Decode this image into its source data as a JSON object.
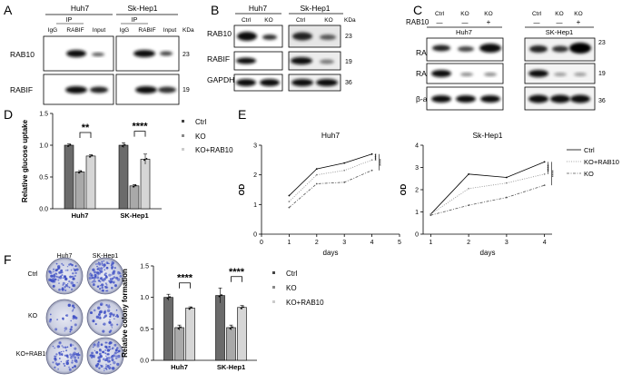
{
  "panel_letters": {
    "a": "A",
    "b": "B",
    "c": "C",
    "d": "D",
    "e": "E",
    "f": "F"
  },
  "colors": {
    "ctrl": "#6b6b6b",
    "ko": "#a9a9a9",
    "rescue": "#d6d6d6",
    "sig": "#000000",
    "colony": "#3e4fc4"
  },
  "panelA": {
    "huh7_title": "Huh7",
    "hep_title": "Sk-Hep1",
    "ip_label": "IP",
    "lanes": [
      "IgG",
      "RABIF",
      "Input"
    ],
    "rows": [
      "RAB10",
      "RABIF"
    ],
    "kda_header": "KDa",
    "kda": [
      "23",
      "19"
    ]
  },
  "panelB": {
    "huh7_title": "Huh7",
    "hep_title": "Sk-Hep1",
    "lanes": [
      "Ctrl",
      "KO"
    ],
    "rows": [
      "RAB10",
      "RABIF",
      "GAPDH"
    ],
    "kda_header": "KDa",
    "kda": [
      "23",
      "19",
      "36"
    ]
  },
  "panelC": {
    "rab10_label": "RAB10",
    "huh7_title": "Huh7",
    "hep_title": "SK-Hep1",
    "lanes": [
      "Ctrl",
      "KO",
      "KO"
    ],
    "signs": [
      "—",
      "—",
      "+"
    ],
    "rows": [
      "RAB10",
      "RABIF",
      "β-actin"
    ],
    "kda": [
      "23",
      "19",
      "36"
    ]
  },
  "legend": {
    "ctrl": "Ctrl",
    "ko": "KO",
    "rescue": "KO+RAB10"
  },
  "panelE_legend": {
    "ctrl": "Ctrl",
    "rescue": "KO+RAB10",
    "ko": "KO"
  },
  "panelF": {
    "col_labels": [
      "Huh7",
      "SK-Hep1"
    ],
    "row_labels": [
      "Ctrl",
      "KO",
      "KO+RAB10"
    ]
  },
  "chart_data": [
    {
      "panel": "D",
      "type": "bar",
      "ylabel": "Relative glucose uptake",
      "categories": [
        "Huh7",
        "SK-Hep1"
      ],
      "ylim": [
        0,
        1.5
      ],
      "yticks": [
        "0.0",
        "0.5",
        "1.0",
        "1.5"
      ],
      "series": [
        {
          "name": "Ctrl",
          "values": [
            1.0,
            1.0
          ],
          "err": [
            0.02,
            0.04
          ]
        },
        {
          "name": "KO",
          "values": [
            0.58,
            0.36
          ],
          "err": [
            0.02,
            0.02
          ]
        },
        {
          "name": "KO+RAB10",
          "values": [
            0.83,
            0.78
          ],
          "err": [
            0.02,
            0.08
          ]
        }
      ],
      "significance": [
        {
          "category": "Huh7",
          "label": "**"
        },
        {
          "category": "SK-Hep1",
          "label": "****"
        }
      ]
    },
    {
      "panel": "E-left",
      "type": "line",
      "title": "Huh7",
      "xlabel": "days",
      "ylabel": "OD",
      "xlim": [
        0,
        5
      ],
      "ylim": [
        0,
        3
      ],
      "xticks": [
        "0",
        "1",
        "2",
        "3",
        "4",
        "5"
      ],
      "yticks": [
        "0",
        "1",
        "2",
        "3"
      ],
      "x": [
        1,
        2,
        3,
        4
      ],
      "series": [
        {
          "name": "Ctrl",
          "values": [
            1.3,
            2.2,
            2.4,
            2.7
          ],
          "style": "solid"
        },
        {
          "name": "KO+RAB10",
          "values": [
            1.1,
            2.0,
            2.15,
            2.5
          ],
          "style": "dotted"
        },
        {
          "name": "KO",
          "values": [
            0.9,
            1.7,
            1.75,
            2.15
          ],
          "style": "dashdot"
        }
      ],
      "significance": [
        "****",
        "****"
      ]
    },
    {
      "panel": "E-right",
      "type": "line",
      "title": "Sk-Hep1",
      "xlabel": "days",
      "ylabel": "OD",
      "xlim": [
        0.8,
        4.2
      ],
      "ylim": [
        0,
        4
      ],
      "xticks": [
        "1",
        "2",
        "3",
        "4"
      ],
      "yticks": [
        "0",
        "1",
        "2",
        "3",
        "4"
      ],
      "x": [
        1,
        2,
        3,
        4
      ],
      "series": [
        {
          "name": "Ctrl",
          "values": [
            0.9,
            2.7,
            2.55,
            3.25
          ],
          "style": "solid"
        },
        {
          "name": "KO+RAB10",
          "values": [
            0.9,
            2.05,
            2.3,
            2.7
          ],
          "style": "dotted"
        },
        {
          "name": "KO",
          "values": [
            0.85,
            1.3,
            1.65,
            2.2
          ],
          "style": "dashdot"
        }
      ],
      "significance": [
        "****",
        "****"
      ]
    },
    {
      "panel": "F",
      "type": "bar",
      "ylabel": "Relative colony formation",
      "categories": [
        "Huh7",
        "SK-Hep1"
      ],
      "ylim": [
        0,
        1.5
      ],
      "yticks": [
        "0.0",
        "0.5",
        "1.0",
        "1.5"
      ],
      "series": [
        {
          "name": "Ctrl",
          "values": [
            1.0,
            1.03
          ],
          "err": [
            0.05,
            0.12
          ]
        },
        {
          "name": "KO",
          "values": [
            0.52,
            0.52
          ],
          "err": [
            0.04,
            0.04
          ]
        },
        {
          "name": "KO+RAB10",
          "values": [
            0.83,
            0.84
          ],
          "err": [
            0.02,
            0.03
          ]
        }
      ],
      "significance": [
        {
          "category": "Huh7",
          "label": "****"
        },
        {
          "category": "SK-Hep1",
          "label": "****"
        }
      ]
    }
  ]
}
